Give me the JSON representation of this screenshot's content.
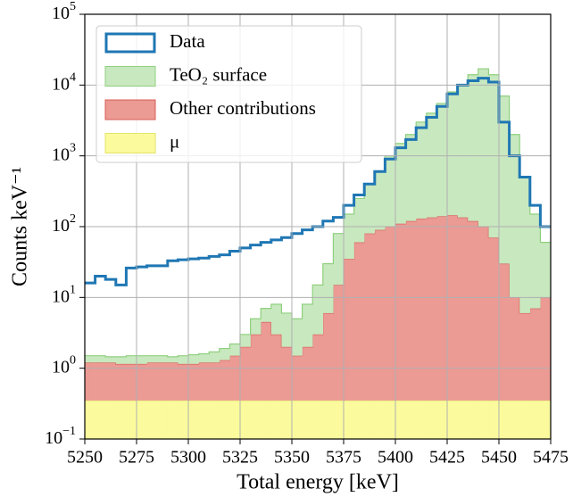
{
  "chart_data": {
    "type": "histogram",
    "xlabel": "Total energy [keV]",
    "ylabel": "Counts keV⁻¹",
    "bins": [
      5250,
      5255,
      5260,
      5265,
      5270,
      5275,
      5280,
      5285,
      5290,
      5295,
      5300,
      5305,
      5310,
      5315,
      5320,
      5325,
      5330,
      5335,
      5340,
      5345,
      5350,
      5355,
      5360,
      5365,
      5370,
      5375,
      5380,
      5385,
      5390,
      5395,
      5400,
      5405,
      5410,
      5415,
      5420,
      5425,
      5430,
      5435,
      5440,
      5445,
      5450,
      5455,
      5460,
      5465,
      5470,
      5475
    ],
    "stacked_series": [
      {
        "name": "μ",
        "color": "#fbfb9d",
        "edge": "#e3e36a",
        "values": [
          0.35,
          0.35,
          0.35,
          0.35,
          0.35,
          0.35,
          0.35,
          0.35,
          0.35,
          0.35,
          0.35,
          0.35,
          0.35,
          0.35,
          0.35,
          0.35,
          0.35,
          0.35,
          0.35,
          0.35,
          0.35,
          0.35,
          0.35,
          0.35,
          0.35,
          0.35,
          0.35,
          0.35,
          0.35,
          0.35,
          0.35,
          0.35,
          0.35,
          0.35,
          0.35,
          0.35,
          0.35,
          0.35,
          0.35,
          0.35,
          0.35,
          0.35,
          0.35,
          0.35,
          0.35
        ]
      },
      {
        "name": "Other contributions",
        "color": "#eb9a94",
        "edge": "#d95c55",
        "values": [
          0.85,
          0.85,
          0.85,
          0.8,
          0.8,
          0.8,
          0.85,
          0.85,
          0.85,
          0.8,
          0.8,
          0.85,
          0.85,
          0.95,
          1.15,
          1.65,
          2.65,
          4.15,
          2.65,
          1.65,
          1.15,
          1.65,
          2.65,
          5.65,
          14.65,
          34.65,
          59.65,
          79.65,
          89.65,
          99.65,
          109.65,
          119.65,
          129.65,
          134.65,
          139.65,
          144.65,
          134.65,
          119.65,
          99.65,
          69.65,
          29.65,
          9.65,
          5.65,
          6.65,
          9.65
        ]
      },
      {
        "name": "TeO₂ surface",
        "color": "#c8e8bf",
        "edge": "#8fd07f",
        "values": [
          0.3,
          0.3,
          0.25,
          0.3,
          0.35,
          0.35,
          0.3,
          0.3,
          0.25,
          0.35,
          0.4,
          0.4,
          0.5,
          0.6,
          0.7,
          1,
          2,
          2.5,
          5,
          4,
          3.5,
          6,
          12,
          24,
          65,
          115,
          190,
          320,
          510,
          900,
          1390,
          1880,
          2870,
          3865,
          5360,
          7855,
          9865,
          13880,
          16900,
          13930,
          6970,
          1990,
          494,
          143,
          50
        ]
      }
    ],
    "data_series": {
      "name": "Data",
      "color": "#1f77b4",
      "values": [
        16,
        20,
        18,
        15,
        26,
        27,
        28,
        28,
        33,
        34,
        35,
        36,
        38,
        40,
        45,
        50,
        55,
        60,
        65,
        70,
        80,
        90,
        100,
        120,
        135,
        200,
        280,
        400,
        600,
        900,
        1300,
        1700,
        2500,
        3500,
        5000,
        7500,
        10000,
        11500,
        12500,
        11000,
        3000,
        1000,
        500,
        200,
        100
      ]
    },
    "legend_order": [
      "Data",
      "TeO₂ surface",
      "Other contributions",
      "μ"
    ],
    "log_y": true,
    "grid": true,
    "legend": "upper left",
    "xlim": [
      5250,
      5475
    ],
    "xticks": [
      5250,
      5275,
      5300,
      5325,
      5350,
      5375,
      5400,
      5425,
      5450,
      5475
    ],
    "ylim": [
      0.1,
      100000
    ],
    "yticks": [
      {
        "value": 0.1,
        "label": "10",
        "exponent": "−1"
      },
      {
        "value": 1,
        "label": "10",
        "exponent": "0"
      },
      {
        "value": 10,
        "label": "10",
        "exponent": "1"
      },
      {
        "value": 100,
        "label": "10",
        "exponent": "2"
      },
      {
        "value": 1000,
        "label": "10",
        "exponent": "3"
      },
      {
        "value": 10000,
        "label": "10",
        "exponent": "4"
      },
      {
        "value": 100000,
        "label": "10",
        "exponent": "5"
      }
    ]
  }
}
